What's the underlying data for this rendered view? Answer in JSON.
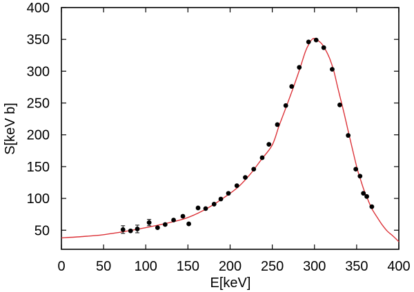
{
  "page": {
    "background": "#ffffff"
  },
  "colors": {
    "frame": "#000000",
    "tick": "#000000",
    "text": "#000000",
    "data_points": "#000000",
    "fit_curve": "#dc3238"
  },
  "chart_data": {
    "type": "scatter",
    "title": "",
    "xlabel": "E[keV]",
    "ylabel": "S[keV b]",
    "xlim": [
      0,
      400
    ],
    "ylim": [
      20,
      400
    ],
    "xticks": [
      0,
      50,
      100,
      150,
      200,
      250,
      300,
      350,
      400
    ],
    "yticks": [
      50,
      100,
      150,
      200,
      250,
      300,
      350,
      400
    ],
    "grid": false,
    "legend": "none",
    "series": [
      {
        "name": "measured-s-factor",
        "type": "scatter",
        "marker": "filled-circle",
        "color": "#000000",
        "points": [
          {
            "x": 73,
            "y": 51,
            "yerr": 6
          },
          {
            "x": 82,
            "y": 49
          },
          {
            "x": 90,
            "y": 52,
            "yerr": 6
          },
          {
            "x": 104,
            "y": 62,
            "yerr": 5
          },
          {
            "x": 114,
            "y": 54
          },
          {
            "x": 123,
            "y": 59
          },
          {
            "x": 133,
            "y": 66
          },
          {
            "x": 144,
            "y": 72
          },
          {
            "x": 151,
            "y": 60
          },
          {
            "x": 162,
            "y": 85
          },
          {
            "x": 171,
            "y": 84
          },
          {
            "x": 181,
            "y": 91
          },
          {
            "x": 189,
            "y": 99
          },
          {
            "x": 198,
            "y": 108
          },
          {
            "x": 208,
            "y": 120
          },
          {
            "x": 218,
            "y": 133
          },
          {
            "x": 228,
            "y": 146
          },
          {
            "x": 238,
            "y": 164
          },
          {
            "x": 246,
            "y": 185
          },
          {
            "x": 256,
            "y": 216
          },
          {
            "x": 266,
            "y": 246
          },
          {
            "x": 273,
            "y": 276
          },
          {
            "x": 282,
            "y": 306
          },
          {
            "x": 293,
            "y": 346
          },
          {
            "x": 302,
            "y": 349
          },
          {
            "x": 311,
            "y": 337
          },
          {
            "x": 321,
            "y": 303
          },
          {
            "x": 330,
            "y": 247
          },
          {
            "x": 340,
            "y": 199
          },
          {
            "x": 349,
            "y": 146
          },
          {
            "x": 354,
            "y": 135
          },
          {
            "x": 358,
            "y": 108
          },
          {
            "x": 362,
            "y": 103
          },
          {
            "x": 368,
            "y": 87
          }
        ]
      },
      {
        "name": "resonance-fit-curve",
        "type": "line",
        "color": "#dc3238",
        "points": [
          [
            0,
            38
          ],
          [
            25,
            40
          ],
          [
            50,
            43
          ],
          [
            75,
            48
          ],
          [
            100,
            54
          ],
          [
            125,
            61
          ],
          [
            150,
            70
          ],
          [
            175,
            86
          ],
          [
            200,
            108
          ],
          [
            212,
            121
          ],
          [
            225,
            140
          ],
          [
            237,
            161
          ],
          [
            250,
            184
          ],
          [
            258,
            214
          ],
          [
            266,
            242
          ],
          [
            274,
            271
          ],
          [
            282,
            301
          ],
          [
            289,
            330
          ],
          [
            294,
            344
          ],
          [
            298,
            351
          ],
          [
            302,
            350
          ],
          [
            308,
            344
          ],
          [
            313,
            334
          ],
          [
            318,
            320
          ],
          [
            323,
            300
          ],
          [
            328,
            272
          ],
          [
            334,
            240
          ],
          [
            340,
            206
          ],
          [
            346,
            172
          ],
          [
            351,
            145
          ],
          [
            355,
            128
          ],
          [
            359,
            112
          ],
          [
            363,
            99
          ],
          [
            368,
            84
          ],
          [
            374,
            71
          ],
          [
            380,
            59
          ],
          [
            386,
            49
          ],
          [
            393,
            41
          ],
          [
            400,
            32
          ]
        ]
      }
    ]
  }
}
